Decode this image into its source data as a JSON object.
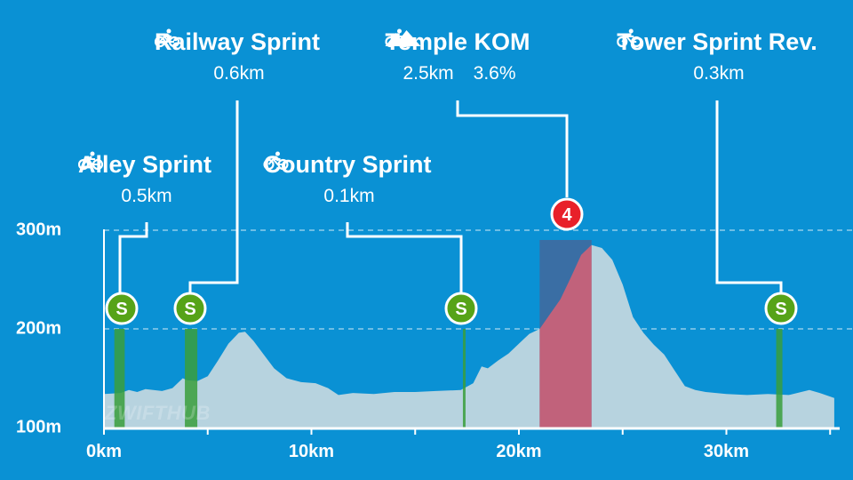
{
  "chart_data": {
    "type": "area",
    "xlabel": "",
    "ylabel": "",
    "x_unit": "km",
    "xlim": [
      0,
      35.2
    ],
    "ylim": [
      100,
      300
    ],
    "x_ticks": [
      "0km",
      "10km",
      "20km",
      "30km"
    ],
    "y_ticks": [
      "300m",
      "200m",
      "100m"
    ],
    "elevation_profile": {
      "x": [
        0,
        0.8,
        1.2,
        1.6,
        2.0,
        2.8,
        3.3,
        3.8,
        4.0,
        4.5,
        5.0,
        5.5,
        6.0,
        6.5,
        6.8,
        7.2,
        7.7,
        8.2,
        8.8,
        9.5,
        10.2,
        10.8,
        11.3,
        12.0,
        13.0,
        14.0,
        15.0,
        16.0,
        17.2,
        17.8,
        18.2,
        18.5,
        19.0,
        19.5,
        20.0,
        20.5,
        21.0,
        21.5,
        22.0,
        22.5,
        23.0,
        23.5,
        24.0,
        24.5,
        25.0,
        25.5,
        26.0,
        26.5,
        27.0,
        27.5,
        28.0,
        28.5,
        29.0,
        30.0,
        31.0,
        32.0,
        33.0,
        34.0,
        34.5,
        35.2
      ],
      "y": [
        134,
        135,
        138,
        136,
        139,
        137,
        140,
        150,
        148,
        147,
        152,
        168,
        185,
        196,
        197,
        188,
        174,
        160,
        150,
        146,
        145,
        140,
        133,
        135,
        134,
        136,
        136,
        137,
        138,
        145,
        162,
        160,
        168,
        175,
        185,
        195,
        200,
        215,
        230,
        252,
        275,
        285,
        282,
        270,
        245,
        212,
        196,
        184,
        174,
        158,
        142,
        138,
        136,
        134,
        133,
        134,
        133,
        138,
        135,
        130
      ]
    },
    "colors": {
      "background": "#0a91d4",
      "profile_fill": "#b7d3df",
      "sprint": "#3a9e3c",
      "kom_band": "#e85c6e",
      "kom_climb_cover": "#3f6a9f",
      "gridline": "#a8d8f0"
    },
    "segments": [
      {
        "name": "Alley Sprint",
        "type": "sprint",
        "length": "0.5km",
        "grade": "",
        "badge": "S",
        "start_km": 0.5,
        "end_km": 1.0
      },
      {
        "name": "Railway Sprint",
        "type": "sprint",
        "length": "0.6km",
        "grade": "",
        "badge": "S",
        "start_km": 3.9,
        "end_km": 4.5
      },
      {
        "name": "Country Sprint",
        "type": "sprint",
        "length": "0.1km",
        "grade": "",
        "badge": "S",
        "start_km": 17.3,
        "end_km": 17.4
      },
      {
        "name": "Temple KOM",
        "type": "kom",
        "length": "2.5km",
        "grade": "3.6%",
        "badge": "4",
        "start_km": 21.0,
        "end_km": 23.5
      },
      {
        "name": "Tower Sprint Rev.",
        "type": "sprint",
        "length": "0.3km",
        "grade": "",
        "badge": "S",
        "start_km": 32.4,
        "end_km": 32.7
      }
    ]
  },
  "watermark": "ZWIFTHUB",
  "icons": {
    "length": "bicycle-icon",
    "grade": "mountain-icon"
  }
}
